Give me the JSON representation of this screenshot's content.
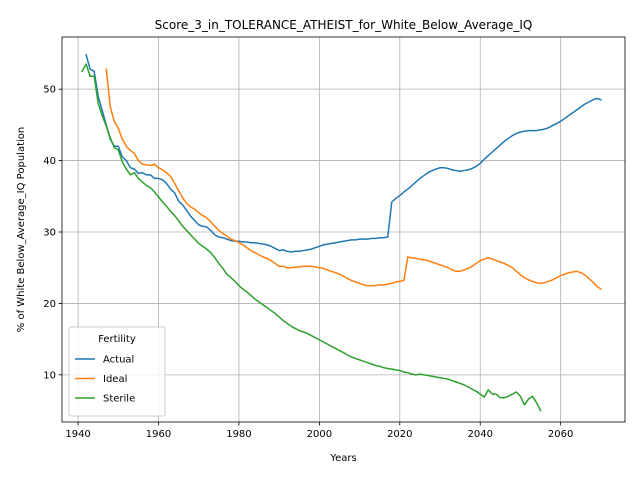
{
  "chart_data": {
    "type": "line",
    "title": "Score_3_in_TOLERANCE_ATHEIST_for_White_Below_Average_IQ",
    "xlabel": "Years",
    "ylabel": "% of White Below_Average_IQ Population",
    "xlim": [
      1936,
      2076
    ],
    "ylim": [
      3.4,
      57.3
    ],
    "xticks": [
      1940,
      1960,
      1980,
      2000,
      2020,
      2040,
      2060
    ],
    "yticks": [
      10,
      20,
      30,
      40,
      50
    ],
    "grid": true,
    "legend": {
      "title": "Fertility",
      "position": "lower-left"
    },
    "series": [
      {
        "name": "Actual",
        "color": "#1f77b4",
        "x": [
          1942,
          1943,
          1944,
          1945,
          1946,
          1947,
          1948,
          1949,
          1950,
          1951,
          1952,
          1953,
          1954,
          1955,
          1956,
          1957,
          1958,
          1959,
          1960,
          1961,
          1962,
          1963,
          1964,
          1965,
          1966,
          1967,
          1968,
          1969,
          1970,
          1971,
          1972,
          1973,
          1974,
          1975,
          1976,
          1977,
          1978,
          1979,
          1980,
          1981,
          1982,
          1983,
          1984,
          1985,
          1986,
          1987,
          1988,
          1989,
          1990,
          1991,
          1992,
          1993,
          1994,
          1995,
          1996,
          1997,
          1998,
          1999,
          2000,
          2001,
          2002,
          2003,
          2004,
          2005,
          2006,
          2007,
          2008,
          2009,
          2010,
          2011,
          2012,
          2013,
          2014,
          2015,
          2016,
          2017,
          2018,
          2019,
          2020,
          2021,
          2022,
          2023,
          2024,
          2025,
          2026,
          2027,
          2028,
          2029,
          2030,
          2031,
          2032,
          2033,
          2034,
          2035,
          2036,
          2037,
          2038,
          2039,
          2040,
          2041,
          2042,
          2043,
          2044,
          2045,
          2046,
          2047,
          2048,
          2049,
          2050,
          2051,
          2052,
          2053,
          2054,
          2055,
          2056,
          2057,
          2058,
          2059,
          2060,
          2061,
          2062,
          2063,
          2064,
          2065,
          2066,
          2067,
          2068,
          2069,
          2070
        ],
        "values": [
          54.8,
          52.8,
          52.5,
          49.0,
          47.0,
          45.0,
          43.0,
          42.0,
          42.0,
          40.5,
          40.0,
          39.0,
          38.8,
          38.2,
          38.3,
          38.0,
          38.0,
          37.5,
          37.5,
          37.3,
          36.8,
          36.0,
          35.5,
          34.3,
          33.8,
          33.0,
          32.2,
          31.6,
          31.0,
          30.8,
          30.7,
          30.2,
          29.6,
          29.3,
          29.2,
          29.0,
          28.8,
          28.7,
          28.7,
          28.6,
          28.6,
          28.5,
          28.5,
          28.4,
          28.3,
          28.2,
          28.0,
          27.7,
          27.4,
          27.5,
          27.3,
          27.2,
          27.3,
          27.3,
          27.4,
          27.5,
          27.6,
          27.8,
          28.0,
          28.2,
          28.3,
          28.4,
          28.5,
          28.6,
          28.7,
          28.8,
          28.9,
          28.9,
          29.0,
          29.0,
          29.0,
          29.1,
          29.1,
          29.2,
          29.2,
          29.3,
          34.2,
          34.7,
          35.1,
          35.6,
          36.0,
          36.5,
          37.0,
          37.5,
          37.9,
          38.3,
          38.6,
          38.8,
          39.0,
          39.0,
          38.9,
          38.7,
          38.6,
          38.5,
          38.6,
          38.7,
          38.9,
          39.2,
          39.6,
          40.2,
          40.7,
          41.2,
          41.7,
          42.2,
          42.7,
          43.1,
          43.5,
          43.8,
          44.0,
          44.1,
          44.2,
          44.2,
          44.2,
          44.3,
          44.4,
          44.6,
          44.9,
          45.2,
          45.5,
          45.9,
          46.3,
          46.7,
          47.1,
          47.5,
          47.9,
          48.2,
          48.5,
          48.7,
          48.5
        ]
      },
      {
        "name": "Ideal",
        "color": "#ff7f0e",
        "x": [
          1947,
          1948,
          1949,
          1950,
          1951,
          1952,
          1953,
          1954,
          1955,
          1956,
          1957,
          1958,
          1959,
          1960,
          1961,
          1962,
          1963,
          1964,
          1965,
          1966,
          1967,
          1968,
          1969,
          1970,
          1971,
          1972,
          1973,
          1974,
          1975,
          1976,
          1977,
          1978,
          1979,
          1980,
          1981,
          1982,
          1983,
          1984,
          1985,
          1986,
          1987,
          1988,
          1989,
          1990,
          1991,
          1992,
          1993,
          1994,
          1995,
          1996,
          1997,
          1998,
          1999,
          2000,
          2001,
          2002,
          2003,
          2004,
          2005,
          2006,
          2007,
          2008,
          2009,
          2010,
          2011,
          2012,
          2013,
          2014,
          2015,
          2016,
          2017,
          2018,
          2019,
          2020,
          2021,
          2022,
          2023,
          2024,
          2025,
          2026,
          2027,
          2028,
          2029,
          2030,
          2031,
          2032,
          2033,
          2034,
          2035,
          2036,
          2037,
          2038,
          2039,
          2040,
          2041,
          2042,
          2043,
          2044,
          2045,
          2046,
          2047,
          2048,
          2049,
          2050,
          2051,
          2052,
          2053,
          2054,
          2055,
          2056,
          2057,
          2058,
          2059,
          2060,
          2061,
          2062,
          2063,
          2064,
          2065,
          2066,
          2067,
          2068,
          2069,
          2070
        ],
        "values": [
          52.8,
          47.5,
          45.5,
          44.5,
          43.0,
          42.0,
          41.4,
          41.0,
          40.0,
          39.5,
          39.4,
          39.3,
          39.5,
          39.0,
          38.7,
          38.3,
          37.8,
          36.8,
          35.8,
          34.8,
          34.0,
          33.5,
          33.2,
          32.7,
          32.3,
          32.0,
          31.4,
          30.8,
          30.2,
          29.8,
          29.4,
          29.0,
          28.8,
          28.5,
          28.2,
          27.8,
          27.4,
          27.1,
          26.8,
          26.5,
          26.3,
          26.0,
          25.6,
          25.2,
          25.2,
          25.0,
          25.0,
          25.1,
          25.1,
          25.2,
          25.2,
          25.2,
          25.1,
          25.0,
          24.9,
          24.7,
          24.5,
          24.3,
          24.1,
          23.8,
          23.5,
          23.2,
          23.0,
          22.8,
          22.6,
          22.5,
          22.5,
          22.5,
          22.6,
          22.6,
          22.7,
          22.8,
          23.0,
          23.1,
          23.2,
          26.5,
          26.4,
          26.3,
          26.2,
          26.1,
          26.0,
          25.8,
          25.6,
          25.4,
          25.2,
          25.0,
          24.7,
          24.5,
          24.5,
          24.7,
          24.9,
          25.2,
          25.6,
          26.0,
          26.2,
          26.4,
          26.2,
          26.0,
          25.8,
          25.6,
          25.3,
          25.0,
          24.5,
          24.0,
          23.6,
          23.3,
          23.1,
          22.9,
          22.8,
          22.9,
          23.1,
          23.3,
          23.6,
          23.9,
          24.1,
          24.3,
          24.4,
          24.5,
          24.3,
          24.0,
          23.5,
          23.0,
          22.4,
          22.0
        ]
      },
      {
        "name": "Sterile",
        "color": "#2ca02c",
        "x": [
          1941,
          1942,
          1943,
          1944,
          1945,
          1946,
          1947,
          1948,
          1949,
          1950,
          1951,
          1952,
          1953,
          1954,
          1955,
          1956,
          1957,
          1958,
          1959,
          1960,
          1961,
          1962,
          1963,
          1964,
          1965,
          1966,
          1967,
          1968,
          1969,
          1970,
          1971,
          1972,
          1973,
          1974,
          1975,
          1976,
          1977,
          1978,
          1979,
          1980,
          1981,
          1982,
          1983,
          1984,
          1985,
          1986,
          1987,
          1988,
          1989,
          1990,
          1991,
          1992,
          1993,
          1994,
          1995,
          1996,
          1997,
          1998,
          1999,
          2000,
          2001,
          2002,
          2003,
          2004,
          2005,
          2006,
          2007,
          2008,
          2009,
          2010,
          2011,
          2012,
          2013,
          2014,
          2015,
          2016,
          2017,
          2018,
          2019,
          2020,
          2021,
          2022,
          2023,
          2024,
          2025,
          2026,
          2027,
          2028,
          2029,
          2030,
          2031,
          2032,
          2033,
          2034,
          2035,
          2036,
          2037,
          2038,
          2039,
          2040,
          2041,
          2042,
          2043,
          2044,
          2045,
          2046,
          2047,
          2048,
          2049,
          2050,
          2051,
          2052,
          2053,
          2054,
          2055
        ],
        "values": [
          52.5,
          53.5,
          51.8,
          51.8,
          48.0,
          46.3,
          44.8,
          43.2,
          41.8,
          41.5,
          39.8,
          38.8,
          38.0,
          38.3,
          37.5,
          37.0,
          36.5,
          36.2,
          35.6,
          34.9,
          34.2,
          33.6,
          32.9,
          32.3,
          31.6,
          30.8,
          30.2,
          29.6,
          29.0,
          28.4,
          28.0,
          27.6,
          27.1,
          26.4,
          25.6,
          24.9,
          24.1,
          23.6,
          23.1,
          22.5,
          22.0,
          21.6,
          21.1,
          20.6,
          20.2,
          19.8,
          19.4,
          19.0,
          18.6,
          18.1,
          17.6,
          17.2,
          16.8,
          16.5,
          16.2,
          16.0,
          15.8,
          15.5,
          15.2,
          14.9,
          14.6,
          14.3,
          14.0,
          13.7,
          13.4,
          13.1,
          12.8,
          12.5,
          12.3,
          12.1,
          11.9,
          11.7,
          11.5,
          11.3,
          11.2,
          11.0,
          10.9,
          10.8,
          10.7,
          10.6,
          10.4,
          10.3,
          10.1,
          10.0,
          10.1,
          10.0,
          9.9,
          9.8,
          9.7,
          9.6,
          9.5,
          9.4,
          9.2,
          9.0,
          8.8,
          8.6,
          8.3,
          8.0,
          7.7,
          7.3,
          6.9,
          7.9,
          7.3,
          7.3,
          6.8,
          6.8,
          7.0,
          7.3,
          7.6,
          7.0,
          5.8,
          6.6,
          7.0,
          6.1,
          5.0
        ]
      }
    ]
  }
}
